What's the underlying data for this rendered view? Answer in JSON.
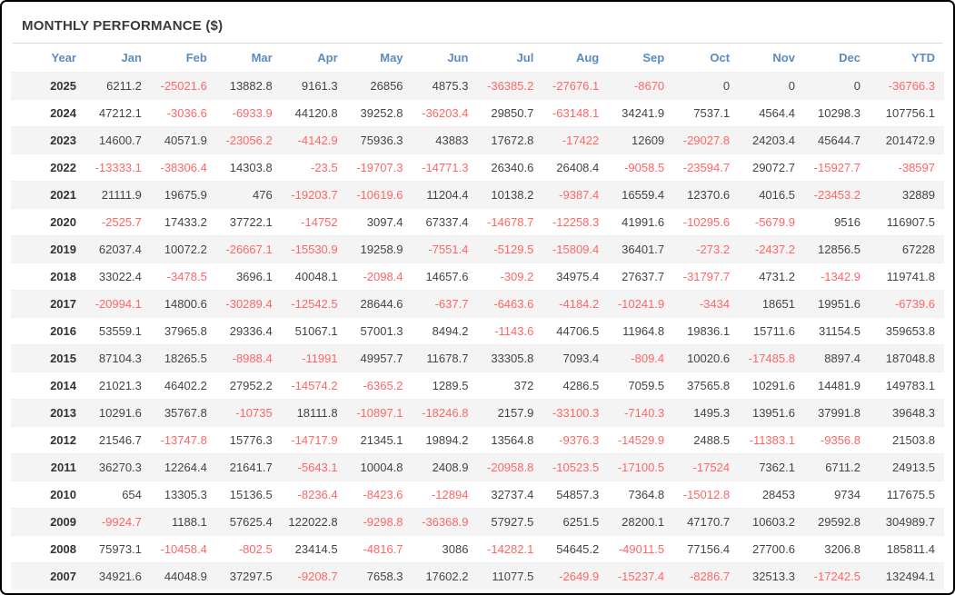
{
  "title": "MONTHLY PERFORMANCE ($)",
  "colors": {
    "header_text": "#5b8bbe",
    "negative_value": "#ff6666",
    "positive_value": "#444444",
    "row_stripe": "#f4f4f4",
    "frame_border": "#000000",
    "title_text": "#3a3a3a"
  },
  "chart_data": {
    "type": "table",
    "title": "MONTHLY PERFORMANCE ($)",
    "columns": [
      "Year",
      "Jan",
      "Feb",
      "Mar",
      "Apr",
      "May",
      "Jun",
      "Jul",
      "Aug",
      "Sep",
      "Oct",
      "Nov",
      "Dec",
      "YTD"
    ],
    "rows": [
      {
        "year": "2025",
        "values": [
          6211.2,
          -25021.6,
          13882.8,
          9161.3,
          26856,
          4875.3,
          -36385.2,
          -27676.1,
          -8670,
          0,
          0,
          0,
          -36766.3
        ]
      },
      {
        "year": "2024",
        "values": [
          47212.1,
          -3036.6,
          -6933.9,
          44120.8,
          39252.8,
          -36203.4,
          29850.7,
          -63148.1,
          34241.9,
          7537.1,
          4564.4,
          10298.3,
          107756.1
        ]
      },
      {
        "year": "2023",
        "values": [
          14600.7,
          40571.9,
          -23056.2,
          -4142.9,
          75936.3,
          43883,
          17672.8,
          -17422,
          12609,
          -29027.8,
          24203.4,
          45644.7,
          201472.9
        ]
      },
      {
        "year": "2022",
        "values": [
          -13333.1,
          -38306.4,
          14303.8,
          -23.5,
          -19707.3,
          -14771.3,
          26340.6,
          26408.4,
          -9058.5,
          -23594.7,
          29072.7,
          -15927.7,
          -38597
        ]
      },
      {
        "year": "2021",
        "values": [
          21111.9,
          19675.9,
          476,
          -19203.7,
          -10619.6,
          11204.4,
          10138.2,
          -9387.4,
          16559.4,
          12370.6,
          4016.5,
          -23453.2,
          32889
        ]
      },
      {
        "year": "2020",
        "values": [
          -2525.7,
          17433.2,
          37722.1,
          -14752,
          3097.4,
          67337.4,
          -14678.7,
          -12258.3,
          41991.6,
          -10295.6,
          -5679.9,
          9516,
          116907.5
        ]
      },
      {
        "year": "2019",
        "values": [
          62037.4,
          10072.2,
          -26667.1,
          -15530.9,
          19258.9,
          -7551.4,
          -5129.5,
          -15809.4,
          36401.7,
          -273.2,
          -2437.2,
          12856.5,
          67228
        ]
      },
      {
        "year": "2018",
        "values": [
          33022.4,
          -3478.5,
          3696.1,
          40048.1,
          -2098.4,
          14657.6,
          -309.2,
          34975.4,
          27637.7,
          -31797.7,
          4731.2,
          -1342.9,
          119741.8
        ]
      },
      {
        "year": "2017",
        "values": [
          -20994.1,
          14800.6,
          -30289.4,
          -12542.5,
          28644.6,
          -637.7,
          -6463.6,
          -4184.2,
          -10241.9,
          -3434,
          18651,
          19951.6,
          -6739.6
        ]
      },
      {
        "year": "2016",
        "values": [
          53559.1,
          37965.8,
          29336.4,
          51067.1,
          57001.3,
          8494.2,
          -1143.6,
          44706.5,
          11964.8,
          19836.1,
          15711.6,
          31154.5,
          359653.8
        ]
      },
      {
        "year": "2015",
        "values": [
          87104.3,
          18265.5,
          -8988.4,
          -11991,
          49957.7,
          11678.7,
          33305.8,
          7093.4,
          -809.4,
          10020.6,
          -17485.8,
          8897.4,
          187048.8
        ]
      },
      {
        "year": "2014",
        "values": [
          21021.3,
          46402.2,
          27952.2,
          -14574.2,
          -6365.2,
          1289.5,
          372,
          4286.5,
          7059.5,
          37565.8,
          10291.6,
          14481.9,
          149783.1
        ]
      },
      {
        "year": "2013",
        "values": [
          10291.6,
          35767.8,
          -10735,
          18111.8,
          -10897.1,
          -18246.8,
          2157.9,
          -33100.3,
          -7140.3,
          1495.3,
          13951.6,
          37991.8,
          39648.3
        ]
      },
      {
        "year": "2012",
        "values": [
          21546.7,
          -13747.8,
          15776.3,
          -14717.9,
          21345.1,
          19894.2,
          13564.8,
          -9376.3,
          -14529.9,
          2488.5,
          -11383.1,
          -9356.8,
          21503.8
        ]
      },
      {
        "year": "2011",
        "values": [
          36270.3,
          12264.4,
          21641.7,
          -5643.1,
          10004.8,
          2408.9,
          -20958.8,
          -10523.5,
          -17100.5,
          -17524,
          7362.1,
          6711.2,
          24913.5
        ]
      },
      {
        "year": "2010",
        "values": [
          654,
          13305.3,
          15136.5,
          -8236.4,
          -8423.6,
          -12894,
          32737.4,
          54857.3,
          7364.8,
          -15012.8,
          28453,
          9734,
          117675.5
        ]
      },
      {
        "year": "2009",
        "values": [
          -9924.7,
          1188.1,
          57625.4,
          122022.8,
          -9298.8,
          -36368.9,
          57927.5,
          6251.5,
          28200.1,
          47170.7,
          10603.2,
          29592.8,
          304989.7
        ]
      },
      {
        "year": "2008",
        "values": [
          75973.1,
          -10458.4,
          -802.5,
          23414.5,
          -4816.7,
          3086,
          -14282.1,
          54645.2,
          -49011.5,
          77156.4,
          27700.6,
          3206.8,
          185811.4
        ]
      },
      {
        "year": "2007",
        "values": [
          34921.6,
          44048.9,
          37297.5,
          -9208.7,
          7658.3,
          17602.2,
          11077.5,
          -2649.9,
          -15237.4,
          -8286.7,
          32513.3,
          -17242.5,
          132494.1
        ]
      }
    ]
  }
}
